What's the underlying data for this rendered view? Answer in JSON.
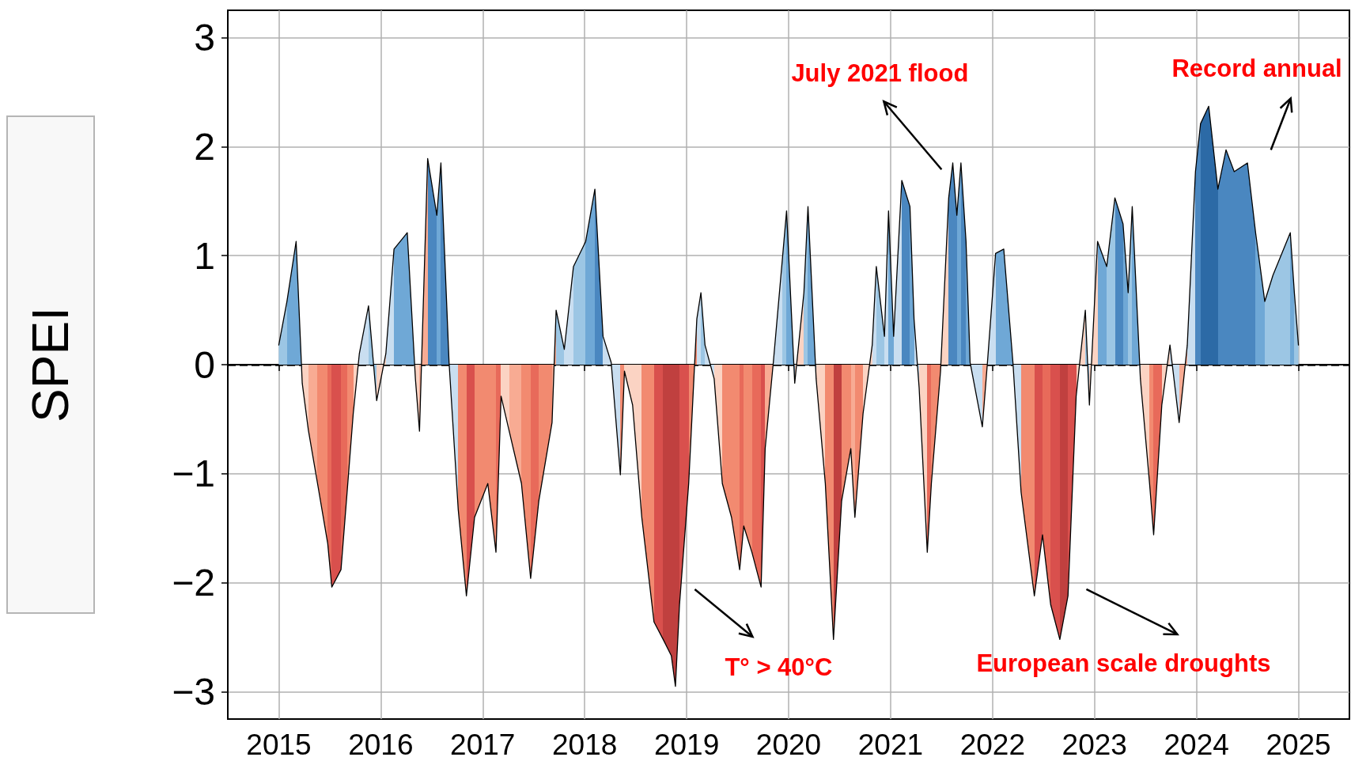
{
  "chart_data": {
    "type": "area",
    "ylabel": "SPEI",
    "xlim": [
      2014.5,
      2025.5
    ],
    "xticks": [
      2015,
      2016,
      2017,
      2018,
      2019,
      2020,
      2021,
      2022,
      2023,
      2024,
      2025
    ],
    "ylim": [
      -3.25,
      3.25
    ],
    "yticks": [
      -3,
      -2,
      -1,
      0,
      1,
      2,
      3
    ],
    "grid": true,
    "ref_lines": [
      {
        "axis": "y",
        "value": 0,
        "color": "#000000",
        "line_style": "dashed"
      }
    ],
    "annotations": [
      "July 2021 flood",
      "Record annual",
      "T° > 40°C",
      "European scale droughts"
    ],
    "series": [
      {
        "color": "#000000",
        "x": [
          2015.0,
          2015.08,
          2015.17,
          2015.23,
          2015.29,
          2015.38,
          2015.48,
          2015.52,
          2015.61,
          2015.67,
          2015.73,
          2015.79,
          2015.88,
          2015.96,
          2016.05,
          2016.13,
          2016.26,
          2016.34,
          2016.38,
          2016.46,
          2016.55,
          2016.59,
          2016.67,
          2016.76,
          2016.84,
          2016.92,
          2017.05,
          2017.13,
          2017.18,
          2017.26,
          2017.38,
          2017.47,
          2017.55,
          2017.68,
          2017.72,
          2017.8,
          2017.89,
          2018.01,
          2018.1,
          2018.18,
          2018.26,
          2018.35,
          2018.39,
          2018.47,
          2018.56,
          2018.68,
          2018.77,
          2018.85,
          2018.89,
          2018.93,
          2019.02,
          2019.1,
          2019.14,
          2019.18,
          2019.27,
          2019.35,
          2019.44,
          2019.52,
          2019.56,
          2019.64,
          2019.73,
          2019.77,
          2019.85,
          2019.94,
          2019.98,
          2020.06,
          2020.15,
          2020.19,
          2020.27,
          2020.36,
          2020.44,
          2020.52,
          2020.61,
          2020.65,
          2020.73,
          2020.82,
          2020.86,
          2020.94,
          2020.98,
          2021.03,
          2021.11,
          2021.19,
          2021.23,
          2021.28,
          2021.36,
          2021.4,
          2021.49,
          2021.57,
          2021.61,
          2021.65,
          2021.69,
          2021.74,
          2021.78,
          2021.9,
          2021.95,
          2022.03,
          2022.11,
          2022.2,
          2022.28,
          2022.41,
          2022.49,
          2022.57,
          2022.66,
          2022.74,
          2022.82,
          2022.91,
          2022.95,
          2023.03,
          2023.12,
          2023.2,
          2023.28,
          2023.33,
          2023.37,
          2023.45,
          2023.54,
          2023.58,
          2023.66,
          2023.74,
          2023.83,
          2023.91,
          2023.99,
          2024.04,
          2024.12,
          2024.21,
          2024.29,
          2024.37,
          2024.5,
          2024.58,
          2024.67,
          2024.75,
          2024.92,
          2024.96,
          2025.0
        ],
        "values": [
          0.18,
          0.58,
          1.13,
          -0.17,
          -0.6,
          -1.09,
          -1.64,
          -2.04,
          -1.88,
          -1.17,
          -0.45,
          0.1,
          0.54,
          -0.33,
          0.1,
          1.06,
          1.21,
          -0.13,
          -0.61,
          1.89,
          1.37,
          1.85,
          0.02,
          -1.33,
          -2.12,
          -1.4,
          -1.09,
          -1.72,
          -0.29,
          -0.61,
          -1.09,
          -1.96,
          -1.25,
          -0.53,
          0.5,
          0.14,
          0.9,
          1.13,
          1.61,
          0.26,
          0.02,
          -1.01,
          -0.06,
          -0.37,
          -1.4,
          -2.36,
          -2.52,
          -2.67,
          -2.95,
          -2.2,
          -1.09,
          0.42,
          0.66,
          0.18,
          -0.13,
          -1.09,
          -1.4,
          -1.88,
          -1.48,
          -1.72,
          -2.04,
          -0.77,
          0.02,
          0.98,
          1.41,
          -0.17,
          0.66,
          1.45,
          -0.13,
          -1.09,
          -2.52,
          -1.25,
          -0.77,
          -1.4,
          -0.45,
          0.18,
          0.9,
          0.26,
          1.41,
          0.26,
          1.69,
          1.45,
          0.42,
          -0.21,
          -1.72,
          -1.09,
          -0.06,
          1.53,
          1.85,
          1.37,
          1.85,
          1.13,
          0.02,
          -0.57,
          0.02,
          1.02,
          1.06,
          0.02,
          -1.17,
          -2.12,
          -1.56,
          -2.2,
          -2.52,
          -2.12,
          -0.29,
          0.5,
          -0.37,
          1.13,
          0.9,
          1.53,
          1.29,
          0.66,
          1.45,
          -0.13,
          -1.09,
          -1.56,
          -0.37,
          0.18,
          -0.53,
          0.18,
          1.77,
          2.21,
          2.37,
          1.61,
          1.97,
          1.77,
          1.85,
          1.21,
          0.58,
          0.82,
          1.21,
          0.66,
          0.18
        ],
        "colors": [
          "#9cc6e4",
          "#6fa8d6",
          "#6fa8d6",
          "#fbd3c3",
          "#f8ab93",
          "#f28a70",
          "#e86a5a",
          "#d9504d",
          "#e86a5a",
          "#f28a70",
          "#fbd3c3",
          "#c9def0",
          "#9cc6e4",
          "#fbd3c3",
          "#c9def0",
          "#6fa8d6",
          "#6fa8d6",
          "#fbd3c3",
          "#f8ab93",
          "#4a87c0",
          "#6fa8d6",
          "#4a87c0",
          "#c9def0",
          "#f28a70",
          "#d9504d",
          "#f28a70",
          "#f28a70",
          "#e86a5a",
          "#fbd3c3",
          "#f8ab93",
          "#f28a70",
          "#e86a5a",
          "#f28a70",
          "#f8ab93",
          "#9cc6e4",
          "#c9def0",
          "#9cc6e4",
          "#6fa8d6",
          "#4a87c0",
          "#c9def0",
          "#c9def0",
          "#f28a70",
          "#fbd3c3",
          "#fbd3c3",
          "#f28a70",
          "#d9504d",
          "#c0403f",
          "#c0403f",
          "#c0403f",
          "#d9504d",
          "#f28a70",
          "#c9def0",
          "#9cc6e4",
          "#c9def0",
          "#fbd3c3",
          "#f28a70",
          "#f28a70",
          "#e86a5a",
          "#f28a70",
          "#e86a5a",
          "#d9504d",
          "#f8ab93",
          "#c9def0",
          "#9cc6e4",
          "#6fa8d6",
          "#fbd3c3",
          "#9cc6e4",
          "#6fa8d6",
          "#fbd3c3",
          "#f28a70",
          "#c0403f",
          "#f28a70",
          "#f8ab93",
          "#f28a70",
          "#fbd3c3",
          "#c9def0",
          "#9cc6e4",
          "#c9def0",
          "#6fa8d6",
          "#c9def0",
          "#4a87c0",
          "#6fa8d6",
          "#c9def0",
          "#fbd3c3",
          "#e86a5a",
          "#f28a70",
          "#fbd3c3",
          "#4a87c0",
          "#4a87c0",
          "#6fa8d6",
          "#4a87c0",
          "#6fa8d6",
          "#c9def0",
          "#f8ab93",
          "#c9def0",
          "#6fa8d6",
          "#6fa8d6",
          "#c9def0",
          "#f28a70",
          "#d9504d",
          "#e86a5a",
          "#d9504d",
          "#c0403f",
          "#d9504d",
          "#fbd3c3",
          "#9cc6e4",
          "#fbd3c3",
          "#6fa8d6",
          "#9cc6e4",
          "#4a87c0",
          "#6fa8d6",
          "#9cc6e4",
          "#6fa8d6",
          "#fbd3c3",
          "#f28a70",
          "#e86a5a",
          "#fbd3c3",
          "#c9def0",
          "#f8ab93",
          "#c9def0",
          "#4a87c0",
          "#2c6aa6",
          "#2c6aa6",
          "#4a87c0",
          "#4a87c0",
          "#4a87c0",
          "#4a87c0",
          "#6fa8d6",
          "#9cc6e4",
          "#9cc6e4",
          "#6fa8d6",
          "#9cc6e4",
          "#c9def0"
        ]
      }
    ]
  }
}
